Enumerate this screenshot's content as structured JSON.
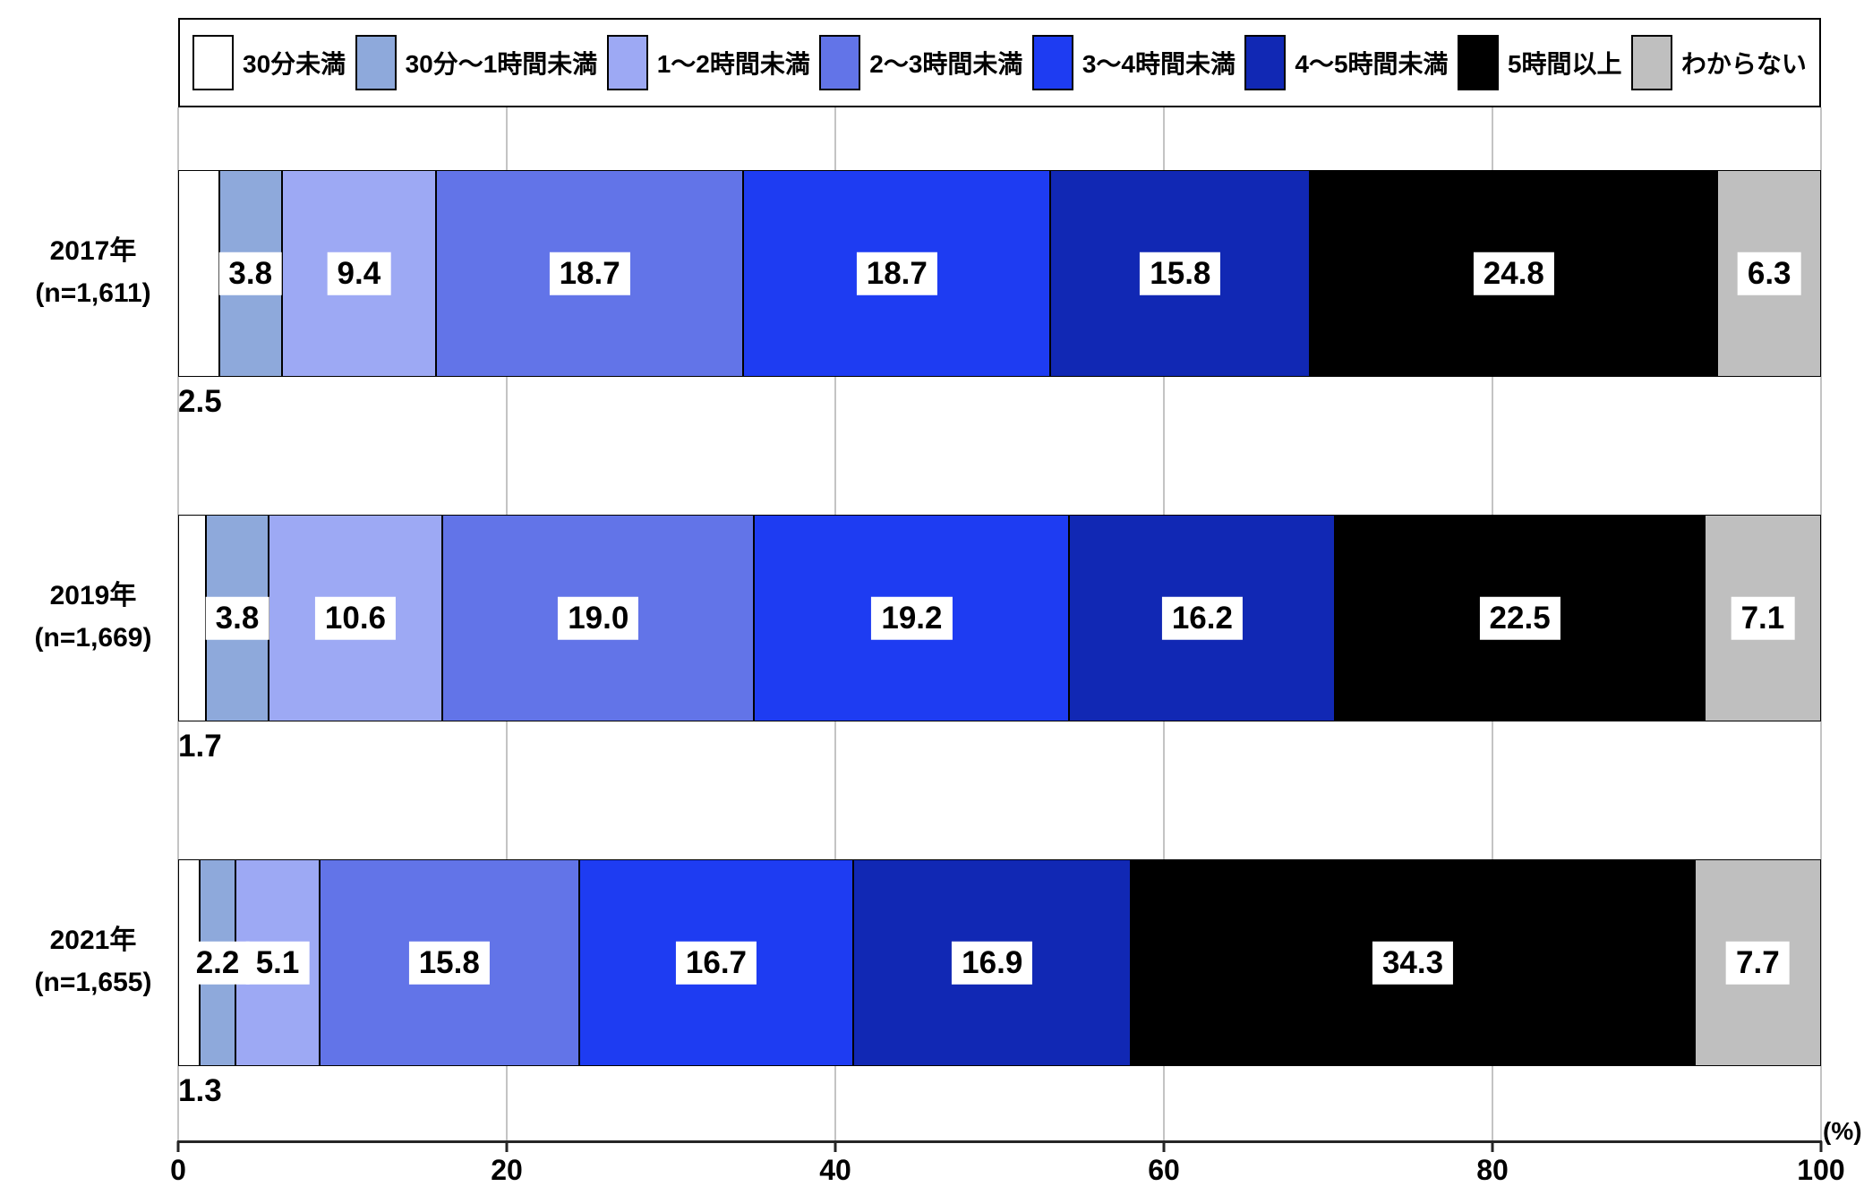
{
  "chart_data": {
    "type": "bar",
    "orientation": "horizontal-stacked",
    "title": "",
    "unit_label": "(%)",
    "xlim": [
      0,
      100
    ],
    "x_ticks": [
      0,
      20,
      40,
      60,
      80,
      100
    ],
    "grid": true,
    "legend_position": "top",
    "legend": [
      {
        "label": "30分未満",
        "color": "#FFFFFF"
      },
      {
        "label": "30分〜1時間未満",
        "color": "#8EA9DB"
      },
      {
        "label": "1〜2時間未満",
        "color": "#9DA9F4"
      },
      {
        "label": "2〜3時間未満",
        "color": "#6274E8"
      },
      {
        "label": "3〜4時間未満",
        "color": "#1E3CF2"
      },
      {
        "label": "4〜5時間未満",
        "color": "#1128B4"
      },
      {
        "label": "5時間以上",
        "color": "#000000"
      },
      {
        "label": "わからない",
        "color": "#BFBFBF"
      }
    ],
    "rows": [
      {
        "year": "2017年",
        "n": "(n=1,611)",
        "values": [
          2.5,
          3.8,
          9.4,
          18.7,
          18.7,
          15.8,
          24.8,
          6.3
        ]
      },
      {
        "year": "2019年",
        "n": "(n=1,669)",
        "values": [
          1.7,
          3.8,
          10.6,
          19.0,
          19.2,
          16.2,
          22.5,
          7.1
        ]
      },
      {
        "year": "2021年",
        "n": "(n=1,655)",
        "values": [
          1.3,
          2.2,
          5.1,
          15.8,
          16.7,
          16.9,
          34.3,
          7.7
        ]
      }
    ],
    "value_label_style": "white-box-inside-segment",
    "first_segment_label_position": "below-bar-left"
  }
}
